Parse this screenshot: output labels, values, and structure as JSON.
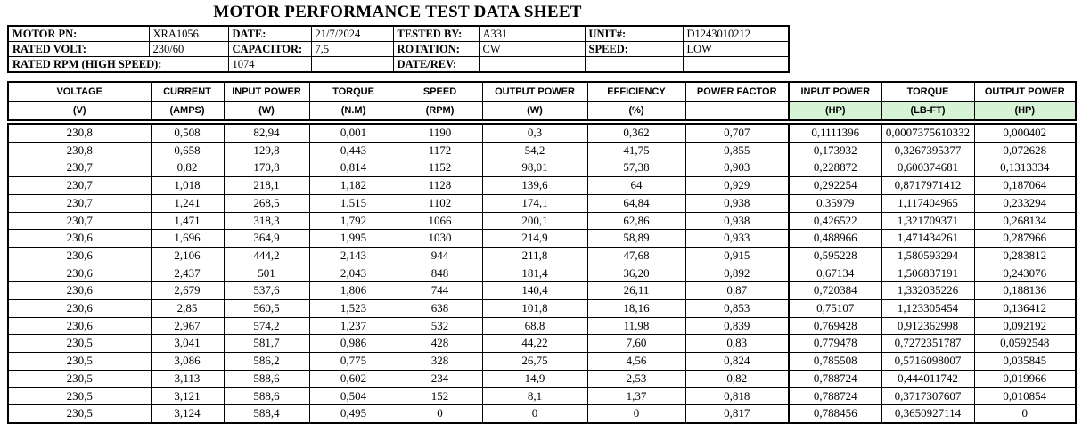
{
  "title": "MOTOR PERFORMANCE TEST DATA SHEET",
  "colors": {
    "unit_highlight": "#d6f3d6",
    "border": "#000000",
    "text": "#000000"
  },
  "info": {
    "motor_pn_label": "MOTOR PN:",
    "motor_pn": "XRA1056",
    "date_label": "DATE:",
    "date": "21/7/2024",
    "tested_by_label": "TESTED BY:",
    "tested_by": "A331",
    "unit_label": "UNIT#:",
    "unit": "D1243010212",
    "rated_volt_label": "RATED VOLT:",
    "rated_volt": "230/60",
    "capacitor_label": "CAPACITOR:",
    "capacitor": "7,5",
    "rotation_label": "ROTATION:",
    "rotation": "CW",
    "speed_label": "SPEED:",
    "speed": "LOW",
    "rated_rpm_label": "RATED RPM (HIGH SPEED):",
    "rated_rpm": "1074",
    "date_rev_label": "DATE/REV:",
    "date_rev": ""
  },
  "table": {
    "columns": [
      {
        "key": "voltage",
        "name": "VOLTAGE",
        "unit": "(V)",
        "highlight": false
      },
      {
        "key": "current",
        "name": "CURRENT",
        "unit": "(AMPS)",
        "highlight": false
      },
      {
        "key": "input-power-w",
        "name": "INPUT POWER",
        "unit": "(W)",
        "highlight": false
      },
      {
        "key": "torque-nm",
        "name": "TORQUE",
        "unit": "(N.M)",
        "highlight": false
      },
      {
        "key": "speed-rpm",
        "name": "SPEED",
        "unit": "(RPM)",
        "highlight": false
      },
      {
        "key": "output-power-w",
        "name": "OUTPUT POWER",
        "unit": "(W)",
        "highlight": false
      },
      {
        "key": "efficiency",
        "name": "EFFICIENCY",
        "unit": "(%)",
        "highlight": false
      },
      {
        "key": "power-factor",
        "name": "POWER FACTOR",
        "unit": "",
        "highlight": false
      },
      {
        "key": "input-power-hp",
        "name": "INPUT POWER",
        "unit": "(HP)",
        "highlight": true
      },
      {
        "key": "torque-lbft",
        "name": "TORQUE",
        "unit": "(LB-FT)",
        "highlight": true
      },
      {
        "key": "output-power-hp",
        "name": "OUTPUT POWER",
        "unit": "(HP)",
        "highlight": true
      }
    ],
    "rows": [
      [
        "230,8",
        "0,508",
        "82,94",
        "0,001",
        "1190",
        "0,3",
        "0,362",
        "0,707",
        "0,1111396",
        "0,0007375610332",
        "0,000402"
      ],
      [
        "230,8",
        "0,658",
        "129,8",
        "0,443",
        "1172",
        "54,2",
        "41,75",
        "0,855",
        "0,173932",
        "0,3267395377",
        "0,072628"
      ],
      [
        "230,7",
        "0,82",
        "170,8",
        "0,814",
        "1152",
        "98,01",
        "57,38",
        "0,903",
        "0,228872",
        "0,600374681",
        "0,1313334"
      ],
      [
        "230,7",
        "1,018",
        "218,1",
        "1,182",
        "1128",
        "139,6",
        "64",
        "0,929",
        "0,292254",
        "0,8717971412",
        "0,187064"
      ],
      [
        "230,7",
        "1,241",
        "268,5",
        "1,515",
        "1102",
        "174,1",
        "64,84",
        "0,938",
        "0,35979",
        "1,117404965",
        "0,233294"
      ],
      [
        "230,7",
        "1,471",
        "318,3",
        "1,792",
        "1066",
        "200,1",
        "62,86",
        "0,938",
        "0,426522",
        "1,321709371",
        "0,268134"
      ],
      [
        "230,6",
        "1,696",
        "364,9",
        "1,995",
        "1030",
        "214,9",
        "58,89",
        "0,933",
        "0,488966",
        "1,471434261",
        "0,287966"
      ],
      [
        "230,6",
        "2,106",
        "444,2",
        "2,143",
        "944",
        "211,8",
        "47,68",
        "0,915",
        "0,595228",
        "1,580593294",
        "0,283812"
      ],
      [
        "230,6",
        "2,437",
        "501",
        "2,043",
        "848",
        "181,4",
        "36,20",
        "0,892",
        "0,67134",
        "1,506837191",
        "0,243076"
      ],
      [
        "230,6",
        "2,679",
        "537,6",
        "1,806",
        "744",
        "140,4",
        "26,11",
        "0,87",
        "0,720384",
        "1,332035226",
        "0,188136"
      ],
      [
        "230,6",
        "2,85",
        "560,5",
        "1,523",
        "638",
        "101,8",
        "18,16",
        "0,853",
        "0,75107",
        "1,123305454",
        "0,136412"
      ],
      [
        "230,6",
        "2,967",
        "574,2",
        "1,237",
        "532",
        "68,8",
        "11,98",
        "0,839",
        "0,769428",
        "0,912362998",
        "0,092192"
      ],
      [
        "230,5",
        "3,041",
        "581,7",
        "0,986",
        "428",
        "44,22",
        "7,60",
        "0,83",
        "0,779478",
        "0,7272351787",
        "0,0592548"
      ],
      [
        "230,5",
        "3,086",
        "586,2",
        "0,775",
        "328",
        "26,75",
        "4,56",
        "0,824",
        "0,785508",
        "0,5716098007",
        "0,035845"
      ],
      [
        "230,5",
        "3,113",
        "588,6",
        "0,602",
        "234",
        "14,9",
        "2,53",
        "0,82",
        "0,788724",
        "0,444011742",
        "0,019966"
      ],
      [
        "230,5",
        "3,121",
        "588,6",
        "0,504",
        "152",
        "8,1",
        "1,37",
        "0,818",
        "0,788724",
        "0,3717307607",
        "0,010854"
      ],
      [
        "230,5",
        "3,124",
        "588,4",
        "0,495",
        "0",
        "0",
        "0",
        "0,817",
        "0,788456",
        "0,3650927114",
        "0"
      ]
    ]
  }
}
